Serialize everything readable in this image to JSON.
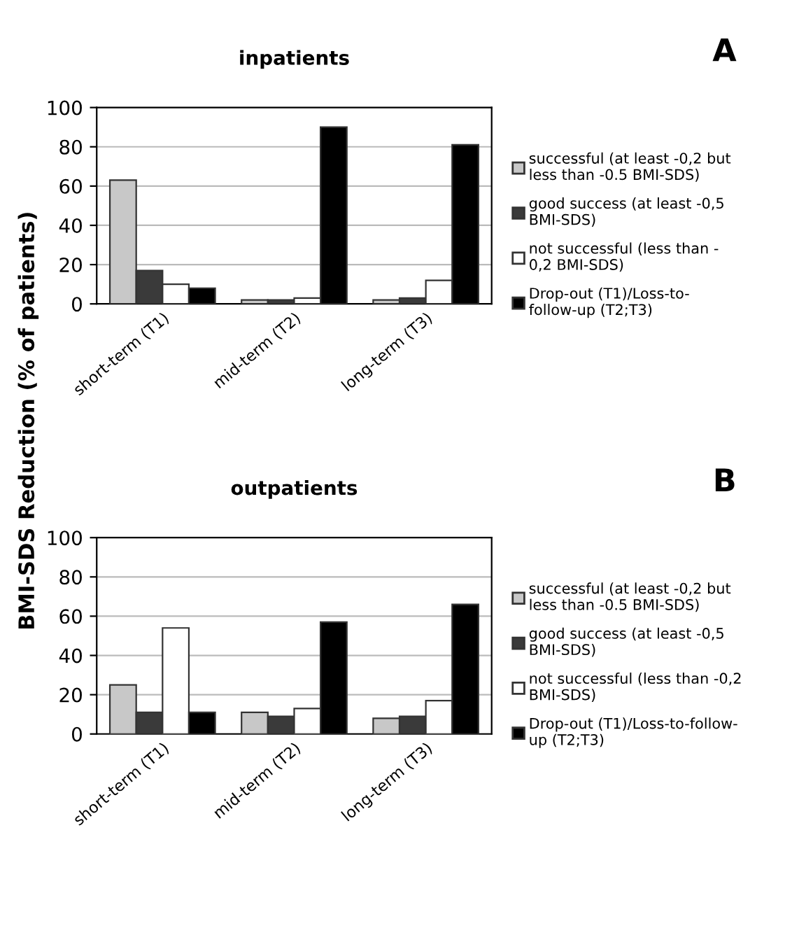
{
  "chart_data": [
    {
      "type": "bar",
      "title": "inpatients",
      "ylabel": "BMI-SDS Reduction (% of patients)",
      "annotations": [
        "A"
      ],
      "categories": [
        "short-term (T1)",
        "mid-term (T2)",
        "long-term (T3)"
      ],
      "series": [
        {
          "name": "successful (at least -0,2 but\nless than -0.5 BMI-SDS)",
          "color": "#c8c8c8",
          "values": [
            63,
            2,
            2
          ]
        },
        {
          "name": "good success (at least -0,5\nBMI-SDS)",
          "color": "#3a3a3a",
          "values": [
            17,
            2,
            3
          ]
        },
        {
          "name": "not successful (less than -\n0,2 BMI-SDS)",
          "color": "#ffffff",
          "values": [
            10,
            3,
            12
          ]
        },
        {
          "name": "Drop-out (T1)/Loss-to-\nfollow-up (T2;T3)",
          "color": "#000000",
          "values": [
            8,
            90,
            81
          ]
        }
      ],
      "ylim": [
        0,
        100
      ],
      "yticks": [
        0,
        20,
        40,
        60,
        80,
        100
      ],
      "grid": "y",
      "legend": "right"
    },
    {
      "type": "bar",
      "title": "outpatients",
      "annotations": [
        "B"
      ],
      "categories": [
        "short-term (T1)",
        "mid-term (T2)",
        "long-term (T3)"
      ],
      "series": [
        {
          "name": "successful (at least -0,2 but\nless than -0.5 BMI-SDS)",
          "color": "#c8c8c8",
          "values": [
            25,
            11,
            8
          ]
        },
        {
          "name": "good success (at least -0,5\nBMI-SDS)",
          "color": "#3a3a3a",
          "values": [
            11,
            9,
            9
          ]
        },
        {
          "name": "not successful (less than -0,2\nBMI-SDS)",
          "color": "#ffffff",
          "values": [
            54,
            13,
            17
          ]
        },
        {
          "name": "Drop-out (T1)/Loss-to-follow-\nup (T2;T3)",
          "color": "#000000",
          "values": [
            11,
            57,
            66
          ]
        }
      ],
      "ylim": [
        0,
        100
      ],
      "yticks": [
        0,
        20,
        40,
        60,
        80,
        100
      ],
      "grid": "y",
      "legend": "right"
    }
  ]
}
